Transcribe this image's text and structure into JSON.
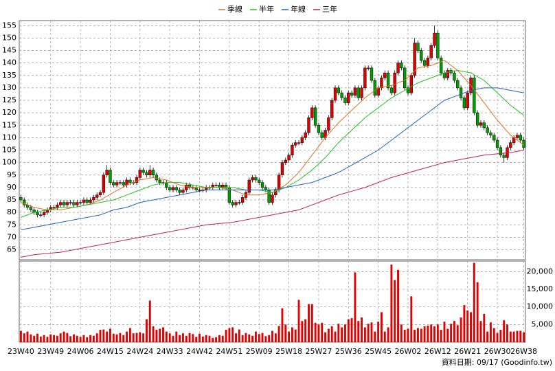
{
  "chart_data": {
    "type": "candlestick",
    "source": "資料日期: 09/17 (Goodinfo.tw)",
    "up_color": "#e00000",
    "down_color": "#00a000",
    "grid": true,
    "categories": [
      "23W40",
      null,
      null,
      null,
      null,
      null,
      null,
      null,
      null,
      "23W49",
      null,
      null,
      null,
      null,
      null,
      null,
      null,
      null,
      "24W06",
      null,
      null,
      null,
      null,
      null,
      null,
      null,
      null,
      "24W15",
      null,
      null,
      null,
      null,
      null,
      null,
      null,
      null,
      "24W24",
      null,
      null,
      null,
      null,
      null,
      null,
      null,
      null,
      "24W33",
      null,
      null,
      null,
      null,
      null,
      null,
      null,
      null,
      "24W42",
      null,
      null,
      null,
      null,
      null,
      null,
      null,
      null,
      "24W51",
      null,
      null,
      null,
      null,
      null,
      null,
      null,
      null,
      "25W09",
      null,
      null,
      null,
      null,
      null,
      null,
      null,
      null,
      "25W18",
      null,
      null,
      null,
      null,
      null,
      null,
      null,
      null,
      "25W27",
      null,
      null,
      null,
      null,
      null,
      null,
      null,
      null,
      "25W36",
      null,
      null,
      null,
      null,
      null,
      null,
      null,
      null,
      "25W45",
      null,
      null,
      null,
      null,
      null,
      null,
      null,
      null,
      "26W02",
      null,
      null,
      null,
      null,
      null,
      null,
      null,
      null,
      "26W12",
      null,
      null,
      null,
      null,
      null,
      null,
      null,
      null,
      "26W21",
      null,
      null,
      null,
      null,
      null,
      null,
      null,
      null,
      "26W30",
      null,
      null,
      null,
      null,
      null,
      null,
      null,
      "26W38"
    ],
    "open": [
      86,
      85,
      83,
      82,
      81,
      80,
      79,
      79,
      80,
      81,
      82,
      82,
      83,
      84,
      83,
      84,
      84,
      83,
      84,
      84,
      85,
      84,
      85,
      86,
      87,
      88,
      95,
      97,
      92,
      91,
      92,
      92,
      91,
      93,
      92,
      92,
      94,
      97,
      96,
      95,
      97,
      95,
      93,
      92,
      92,
      90,
      89,
      90,
      89,
      88,
      89,
      91,
      90,
      90,
      89,
      89,
      89,
      90,
      90,
      91,
      91,
      90,
      91,
      90,
      84,
      83,
      84,
      84,
      86,
      88,
      93,
      94,
      93,
      92,
      90,
      89,
      84,
      87,
      89,
      95,
      100,
      101,
      103,
      107,
      108,
      108,
      110,
      112,
      118,
      122,
      115,
      112,
      110,
      113,
      118,
      125,
      130,
      128,
      126,
      124,
      128,
      127,
      130,
      126,
      130,
      138,
      138,
      133,
      127,
      130,
      134,
      136,
      130,
      128,
      136,
      140,
      138,
      130,
      128,
      135,
      148,
      145,
      141,
      139,
      142,
      147,
      152,
      142,
      136,
      134,
      137,
      136,
      133,
      130,
      126,
      122,
      128,
      134,
      120,
      115,
      116,
      114,
      112,
      111,
      109,
      106,
      103,
      102,
      106,
      108,
      110,
      111,
      109
    ],
    "high": [
      87,
      86,
      84,
      83,
      82,
      81,
      80,
      81,
      82,
      83,
      83,
      84,
      85,
      85,
      85,
      85,
      85,
      85,
      85,
      86,
      86,
      86,
      87,
      88,
      89,
      96,
      99,
      98,
      93,
      93,
      93,
      93,
      94,
      94,
      93,
      95,
      98,
      98,
      97,
      99,
      98,
      96,
      94,
      93,
      93,
      91,
      91,
      91,
      90,
      90,
      92,
      92,
      91,
      91,
      90,
      90,
      91,
      91,
      92,
      92,
      92,
      92,
      92,
      91,
      85,
      85,
      85,
      87,
      89,
      94,
      95,
      95,
      94,
      93,
      91,
      90,
      88,
      90,
      96,
      101,
      102,
      104,
      108,
      109,
      109,
      111,
      113,
      119,
      123,
      123,
      116,
      113,
      114,
      119,
      126,
      131,
      131,
      129,
      127,
      129,
      129,
      131,
      131,
      131,
      139,
      139,
      139,
      134,
      131,
      135,
      137,
      137,
      131,
      137,
      141,
      141,
      139,
      131,
      136,
      150,
      149,
      146,
      142,
      143,
      148,
      155,
      153,
      143,
      137,
      138,
      138,
      137,
      134,
      131,
      127,
      129,
      135,
      135,
      121,
      117,
      117,
      115,
      113,
      112,
      110,
      107,
      104,
      107,
      109,
      111,
      112,
      112,
      110
    ],
    "low": [
      84,
      82,
      81,
      80,
      79,
      78,
      78,
      78,
      79,
      80,
      81,
      81,
      82,
      82,
      82,
      83,
      82,
      82,
      83,
      83,
      83,
      83,
      84,
      85,
      86,
      87,
      94,
      91,
      90,
      90,
      91,
      90,
      90,
      91,
      91,
      91,
      93,
      95,
      94,
      94,
      94,
      92,
      91,
      91,
      89,
      88,
      88,
      88,
      87,
      87,
      88,
      89,
      89,
      88,
      88,
      88,
      88,
      89,
      89,
      90,
      89,
      89,
      89,
      83,
      82,
      82,
      83,
      83,
      85,
      87,
      92,
      92,
      91,
      89,
      88,
      83,
      83,
      86,
      88,
      94,
      99,
      100,
      102,
      106,
      107,
      107,
      109,
      111,
      117,
      114,
      111,
      109,
      109,
      112,
      117,
      124,
      127,
      125,
      123,
      123,
      126,
      126,
      125,
      125,
      129,
      137,
      132,
      126,
      126,
      129,
      133,
      129,
      127,
      127,
      135,
      137,
      129,
      127,
      127,
      134,
      144,
      140,
      138,
      138,
      141,
      146,
      141,
      135,
      133,
      133,
      135,
      132,
      129,
      125,
      121,
      121,
      127,
      119,
      114,
      114,
      113,
      111,
      110,
      108,
      105,
      102,
      100,
      101,
      105,
      107,
      109,
      108,
      105
    ],
    "close": [
      85,
      83,
      82,
      81,
      80,
      79,
      79,
      80,
      81,
      82,
      82,
      83,
      84,
      83,
      84,
      84,
      83,
      84,
      84,
      85,
      84,
      85,
      86,
      87,
      88,
      95,
      97,
      92,
      91,
      92,
      92,
      91,
      93,
      92,
      92,
      94,
      97,
      96,
      95,
      97,
      95,
      93,
      92,
      92,
      90,
      89,
      90,
      89,
      88,
      89,
      91,
      90,
      90,
      89,
      89,
      89,
      90,
      90,
      91,
      91,
      90,
      91,
      90,
      84,
      83,
      84,
      84,
      86,
      88,
      93,
      94,
      93,
      92,
      90,
      89,
      84,
      87,
      89,
      95,
      100,
      101,
      103,
      107,
      108,
      108,
      110,
      112,
      118,
      122,
      115,
      112,
      110,
      113,
      118,
      125,
      130,
      128,
      126,
      124,
      128,
      127,
      130,
      126,
      130,
      138,
      138,
      133,
      127,
      130,
      134,
      136,
      130,
      128,
      136,
      140,
      138,
      130,
      128,
      135,
      148,
      145,
      141,
      139,
      142,
      147,
      152,
      142,
      136,
      134,
      137,
      136,
      133,
      130,
      126,
      122,
      128,
      134,
      120,
      115,
      116,
      114,
      112,
      111,
      109,
      106,
      103,
      102,
      106,
      108,
      110,
      111,
      109,
      106
    ],
    "ylim": [
      61,
      157
    ],
    "yticks": [
      65,
      70,
      75,
      80,
      85,
      90,
      95,
      100,
      105,
      110,
      115,
      120,
      125,
      130,
      135,
      140,
      145,
      150,
      155
    ],
    "series": [
      {
        "name": "季線",
        "color": "#e07020",
        "x": [
          0,
          4,
          8,
          12,
          16,
          20,
          24,
          28,
          32,
          36,
          40,
          44,
          48,
          52,
          56,
          60,
          64,
          68,
          72,
          76,
          80,
          84,
          88,
          92,
          96,
          100,
          104,
          108,
          112,
          116,
          120,
          124,
          128,
          132,
          136,
          140,
          144,
          148,
          152
        ],
        "values": [
          84,
          82,
          81,
          81,
          82,
          83,
          85,
          88,
          91,
          93,
          94,
          93,
          91,
          90,
          90,
          90,
          89,
          87,
          87,
          88,
          91,
          96,
          103,
          110,
          116,
          121,
          126,
          130,
          131,
          133,
          138,
          139,
          141,
          137,
          131,
          124,
          117,
          111,
          107
        ]
      },
      {
        "name": "半年",
        "color": "#20c020",
        "x": [
          0,
          4,
          8,
          12,
          16,
          20,
          24,
          28,
          32,
          36,
          40,
          44,
          48,
          52,
          56,
          60,
          64,
          68,
          72,
          76,
          80,
          84,
          88,
          92,
          96,
          100,
          104,
          108,
          112,
          116,
          120,
          124,
          128,
          132,
          136,
          140,
          144,
          148,
          152
        ],
        "values": [
          78,
          80,
          81,
          82,
          82,
          83,
          84,
          85,
          87,
          89,
          91,
          92,
          92,
          91,
          90,
          90,
          90,
          89,
          89,
          88,
          90,
          93,
          97,
          102,
          108,
          113,
          118,
          122,
          126,
          129,
          132,
          134,
          136,
          137,
          136,
          133,
          128,
          123,
          119
        ]
      },
      {
        "name": "年線",
        "color": "#2060c0",
        "x": [
          0,
          4,
          8,
          12,
          16,
          20,
          24,
          28,
          32,
          36,
          40,
          44,
          48,
          52,
          56,
          60,
          64,
          68,
          72,
          76,
          80,
          84,
          88,
          92,
          96,
          100,
          104,
          108,
          112,
          116,
          120,
          124,
          128,
          132,
          136,
          140,
          144,
          148,
          152
        ],
        "values": [
          73,
          74,
          75,
          76,
          77,
          78,
          79,
          81,
          82,
          84,
          85,
          86,
          87,
          88,
          89,
          89,
          89,
          89,
          89,
          89,
          90,
          91,
          92,
          94,
          96,
          99,
          102,
          105,
          109,
          113,
          117,
          121,
          125,
          127,
          129,
          130,
          130,
          129,
          128
        ]
      },
      {
        "name": "三年",
        "color": "#c02060",
        "x": [
          0,
          4,
          8,
          12,
          16,
          20,
          24,
          28,
          32,
          36,
          40,
          44,
          48,
          52,
          56,
          60,
          64,
          68,
          72,
          76,
          80,
          84,
          88,
          92,
          96,
          100,
          104,
          108,
          112,
          116,
          120,
          124,
          128,
          132,
          136,
          140,
          144,
          148,
          152
        ],
        "values": [
          62,
          63,
          63.5,
          64,
          65,
          66,
          67,
          68,
          69,
          70,
          71,
          72,
          73,
          74,
          75,
          75.5,
          76,
          77,
          78,
          79,
          80,
          81,
          83,
          85,
          87,
          88.5,
          90,
          92,
          94,
          95.5,
          97,
          98.5,
          100,
          101,
          102,
          103,
          103.5,
          104,
          105
        ]
      }
    ],
    "volume": {
      "color": "#e00000",
      "values": [
        3200,
        2500,
        3000,
        2200,
        1800,
        2400,
        1600,
        2000,
        1500,
        2200,
        2000,
        1800,
        2500,
        3000,
        2600,
        1700,
        2200,
        1800,
        1500,
        2000,
        1400,
        2000,
        1800,
        2500,
        3500,
        3600,
        3000,
        3800,
        2400,
        2200,
        2600,
        2000,
        3000,
        4000,
        2500,
        2600,
        2800,
        2500,
        6500,
        11800,
        4500,
        3500,
        3800,
        4200,
        3000,
        2500,
        1800,
        3000,
        2000,
        2500,
        1800,
        2600,
        2300,
        1500,
        2400,
        1600,
        2000,
        1800,
        1200,
        1400,
        2000,
        1800,
        3500,
        4000,
        4200,
        2500,
        3600,
        2000,
        2600,
        2200,
        1800,
        3000,
        2300,
        2600,
        1700,
        2000,
        3200,
        2500,
        4600,
        9600,
        5000,
        3000,
        4200,
        3600,
        12000,
        6000,
        6500,
        10800,
        10800,
        5500,
        5000,
        5500,
        2800,
        3800,
        4500,
        3000,
        5200,
        4200,
        5000,
        6500,
        6800,
        19800,
        6000,
        7000,
        4200,
        5200,
        5600,
        3000,
        5800,
        8500,
        3000,
        4200,
        22000,
        17600,
        20500,
        5000,
        3500,
        3800,
        13000,
        3500,
        4000,
        3800,
        4500,
        4700,
        5000,
        4500,
        5000,
        3500,
        5800,
        3800,
        5200,
        6000,
        4800,
        7000,
        10500,
        9000,
        8500,
        22500,
        17000,
        6000,
        8000,
        3000,
        5600,
        4000,
        2600,
        3500,
        6200,
        5000,
        3000,
        3000,
        3200,
        3200,
        2800
      ],
      "ylim": [
        0,
        23000
      ],
      "yticks": [
        {
          "value": 5000,
          "label": "5,000"
        },
        {
          "value": 10000,
          "label": "10,000"
        },
        {
          "value": 15000,
          "label": "15,000"
        },
        {
          "value": 20000,
          "label": "20,000"
        }
      ]
    }
  }
}
